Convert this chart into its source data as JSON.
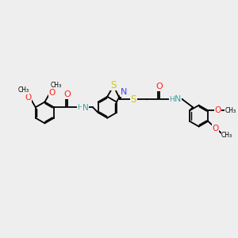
{
  "background_color": "#eeeeee",
  "bond_color": "#000000",
  "bond_lw": 1.3,
  "atom_colors": {
    "N": "#4040ff",
    "O": "#ff2020",
    "S": "#cccc00",
    "H_color": "#40a0a0"
  },
  "font_size": 6.5,
  "figsize": [
    3.0,
    3.0
  ],
  "dpi": 100,
  "xlim": [
    -0.5,
    10.5
  ],
  "ylim": [
    1.5,
    8.5
  ]
}
